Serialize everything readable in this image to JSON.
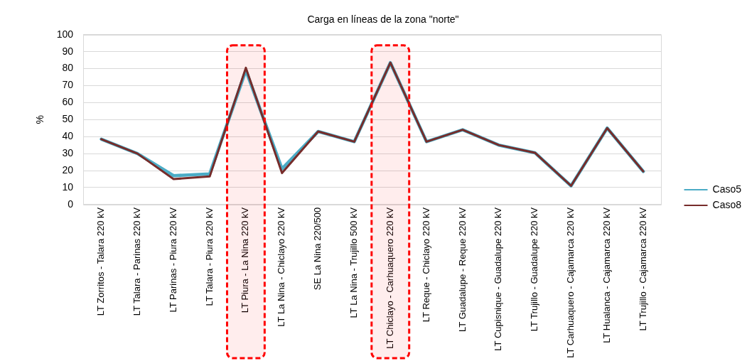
{
  "chart_data": {
    "type": "line",
    "title": "Carga en líneas de la zona \"norte\"",
    "ylabel": "%",
    "categories": [
      "LT Zorritos - Talara 220 kV",
      "LT Talara - Parinas 220 kV",
      "LT Parinas - Piura 220 kV",
      "LT Talara - Piura 220 kV",
      "LT Piura - La Nina 220 kV",
      "LT La Nina - Chiclayo 220 kV",
      "SE La Nina 220/500",
      "LT La Nina - Trujillo 500 kV",
      "LT Chiclayo - Carhuaquero 220 kV",
      "LT Reque - Chiclayo 220 kV",
      "LT Guadalupe - Reque 220 kV",
      "LT Cupisnique - Guadalupe 220 kV",
      "LT Trujillo - Guadalupe 220 kV",
      "LT Carhuaquero - Cajamarca 220 kV",
      "LT Hualanca - Cajamarca 220 kV",
      "LT Trujillo - Cajamarca 220 kV"
    ],
    "series": [
      {
        "name": "Caso5",
        "color": "#4bacc6",
        "values": [
          38.5,
          30,
          17,
          18,
          79,
          21,
          43,
          37,
          83.5,
          37,
          44,
          35,
          30.5,
          11,
          45,
          19.5
        ]
      },
      {
        "name": "Caso8",
        "color": "#772c2a",
        "values": [
          38.5,
          30,
          15,
          16.5,
          80.5,
          18.5,
          43,
          37,
          83.5,
          37,
          44,
          35,
          30.5,
          11,
          45,
          19.5
        ]
      }
    ],
    "bands": [
      {
        "axis": "x",
        "from": "LT Piura - La Nina 220 kV",
        "to": "LT Piura - La Nina 220 kV",
        "color": "#ff0000"
      },
      {
        "axis": "x",
        "from": "LT Chiclayo - Carhuaquero 220 kV",
        "to": "LT Chiclayo - Carhuaquero 220 kV",
        "color": "#ff0000"
      }
    ],
    "ylim": [
      0,
      100
    ],
    "yticks": [
      0,
      10,
      20,
      30,
      40,
      50,
      60,
      70,
      80,
      90,
      100
    ],
    "grid": "y",
    "legend": "right",
    "marker": "none",
    "line_style": "solid"
  }
}
